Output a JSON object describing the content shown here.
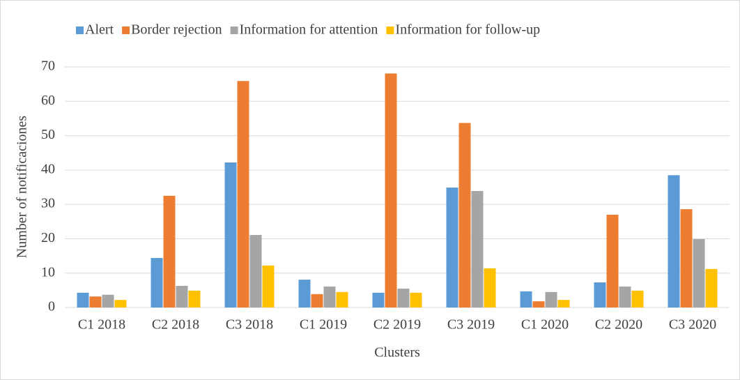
{
  "chart_data": {
    "type": "bar",
    "xlabel": "Clusters",
    "ylabel": "Number of notificaciones",
    "categories": [
      "C1 2018",
      "C2 2018",
      "C3 2018",
      "C1 2019",
      "C2 2019",
      "C3 2019",
      "C1 2020",
      "C2 2020",
      "C3 2020"
    ],
    "series": [
      {
        "name": "Alert",
        "color": "#5b9bd5",
        "values": [
          4.3,
          14.4,
          42.2,
          8.1,
          4.3,
          34.9,
          4.7,
          7.3,
          38.5
        ]
      },
      {
        "name": "Border rejection",
        "color": "#ed7d31",
        "values": [
          3.2,
          32.5,
          65.9,
          3.9,
          68.1,
          53.7,
          1.8,
          27.0,
          28.6
        ]
      },
      {
        "name": "Information for attention",
        "color": "#a5a5a5",
        "values": [
          3.7,
          6.3,
          21.1,
          6.1,
          5.5,
          33.9,
          4.5,
          6.1,
          19.9
        ]
      },
      {
        "name": "Information for follow-up",
        "color": "#ffc000",
        "values": [
          2.2,
          4.9,
          12.2,
          4.5,
          4.3,
          11.4,
          2.2,
          4.9,
          11.2
        ]
      }
    ],
    "ylim": [
      0,
      70
    ],
    "yticks": [
      0,
      10,
      20,
      30,
      40,
      50,
      60,
      70
    ],
    "grid": true,
    "legend": "top"
  }
}
